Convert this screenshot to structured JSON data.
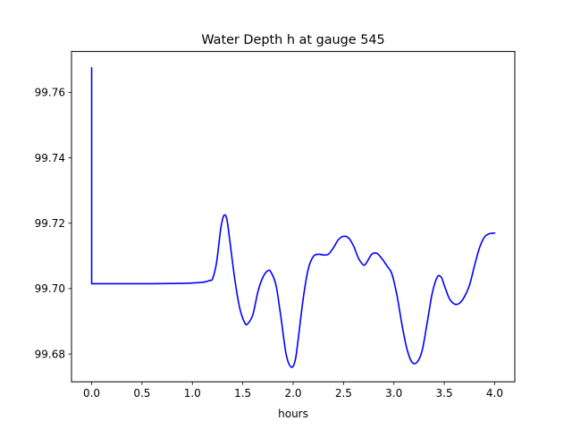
{
  "chart_data": {
    "type": "line",
    "title": "Water Depth h at gauge 545",
    "xlabel": "hours",
    "ylabel": "",
    "xlim": [
      -0.2,
      4.2
    ],
    "ylim": [
      99.6715,
      99.7725
    ],
    "x_ticks": [
      0.0,
      0.5,
      1.0,
      1.5,
      2.0,
      2.5,
      3.0,
      3.5,
      4.0
    ],
    "x_tick_labels": [
      "0.0",
      "0.5",
      "1.0",
      "1.5",
      "2.0",
      "2.5",
      "3.0",
      "3.5",
      "4.0"
    ],
    "y_ticks": [
      99.68,
      99.7,
      99.72,
      99.74,
      99.76
    ],
    "y_tick_labels": [
      "99.68",
      "99.70",
      "99.72",
      "99.74",
      "99.76"
    ],
    "grid": false,
    "legend": "none",
    "series": [
      {
        "color": "#0000ff",
        "x": [
          0.0,
          0.0,
          0.3,
          0.6,
          0.9,
          1.05,
          1.12,
          1.17,
          1.2,
          1.24,
          1.28,
          1.31,
          1.34,
          1.37,
          1.42,
          1.47,
          1.52,
          1.55,
          1.6,
          1.65,
          1.7,
          1.75,
          1.78,
          1.83,
          1.88,
          1.93,
          1.98,
          2.02,
          2.05,
          2.1,
          2.15,
          2.2,
          2.25,
          2.3,
          2.35,
          2.4,
          2.45,
          2.5,
          2.55,
          2.6,
          2.65,
          2.7,
          2.73,
          2.78,
          2.83,
          2.88,
          2.93,
          2.98,
          3.03,
          3.08,
          3.13,
          3.18,
          3.23,
          3.28,
          3.33,
          3.38,
          3.43,
          3.47,
          3.5,
          3.55,
          3.6,
          3.65,
          3.7,
          3.75,
          3.8,
          3.85,
          3.9,
          3.95,
          4.0
        ],
        "y": [
          99.7675,
          99.7015,
          99.7015,
          99.7015,
          99.7016,
          99.7018,
          99.702,
          99.7025,
          99.703,
          99.708,
          99.718,
          99.7222,
          99.7215,
          99.715,
          99.703,
          99.694,
          99.6895,
          99.6893,
          99.692,
          99.699,
          99.7035,
          99.7055,
          99.705,
          99.701,
          99.691,
          99.68,
          99.676,
          99.678,
          99.6845,
          99.697,
          99.706,
          99.7098,
          99.7105,
          99.7103,
          99.7105,
          99.7125,
          99.715,
          99.716,
          99.7155,
          99.713,
          99.7092,
          99.7072,
          99.708,
          99.7105,
          99.7108,
          99.7092,
          99.707,
          99.7045,
          99.698,
          99.689,
          99.6815,
          99.6775,
          99.6775,
          99.681,
          99.6895,
          99.6985,
          99.7035,
          99.7035,
          99.701,
          99.697,
          99.6953,
          99.6955,
          99.6975,
          99.701,
          99.707,
          99.7125,
          99.7158,
          99.7168,
          99.717
        ]
      }
    ]
  }
}
